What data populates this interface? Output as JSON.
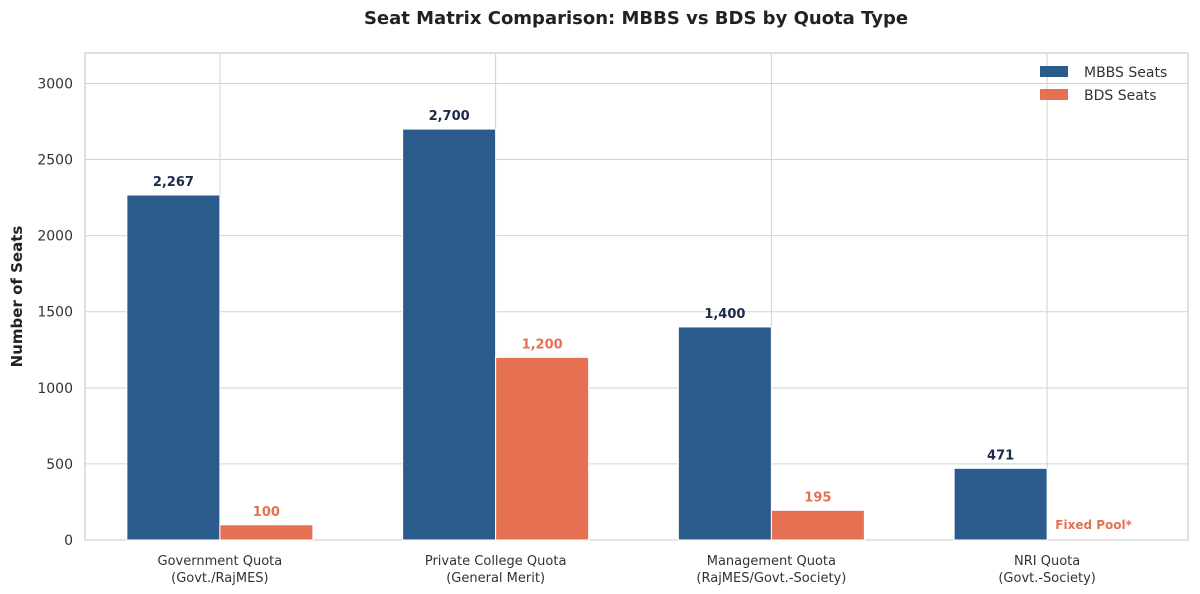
{
  "chart_data": {
    "type": "bar",
    "title": "Seat Matrix Comparison: MBBS vs BDS by Quota Type",
    "xlabel": "",
    "ylabel": "Number of Seats",
    "ylim": [
      0,
      3200
    ],
    "yticks": [
      0,
      500,
      1000,
      1500,
      2000,
      2500,
      3000
    ],
    "grid": true,
    "legend_position": "top-right",
    "categories": [
      [
        "Government Quota",
        "(Govt./RajMES)"
      ],
      [
        "Private College Quota",
        "(General Merit)"
      ],
      [
        "Management Quota",
        "(RajMES/Govt.-Society)"
      ],
      [
        "NRI Quota",
        "(Govt.-Society)"
      ]
    ],
    "series": [
      {
        "name": "MBBS Seats",
        "color": "#2b5b8c",
        "label_color": "#1b2a4a",
        "values": [
          2267,
          2700,
          1400,
          471
        ],
        "labels": [
          "2,267",
          "2,700",
          "1,400",
          "471"
        ]
      },
      {
        "name": "BDS Seats",
        "color": "#e57052",
        "label_color": "#e57052",
        "values": [
          100,
          1200,
          195,
          null
        ],
        "labels": [
          "100",
          "1,200",
          "195",
          "Fixed Pool*"
        ]
      }
    ]
  }
}
